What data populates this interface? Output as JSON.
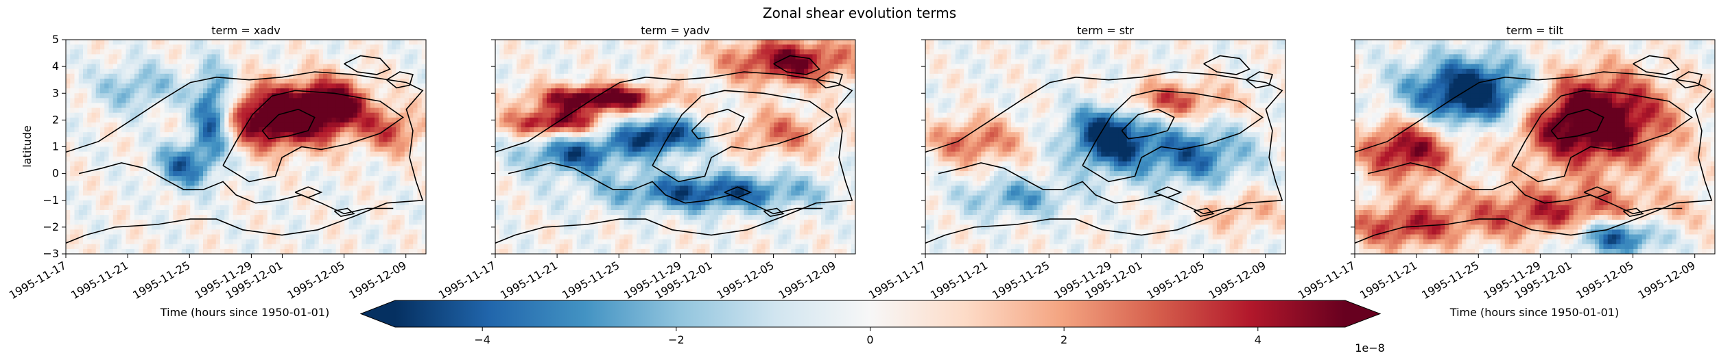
{
  "chart_data": {
    "type": "heatmap",
    "title": "Zonal shear evolution terms",
    "colormap": "RdBu_r",
    "contour_color": "#000000",
    "panels": [
      {
        "title": "term = xadv",
        "pattern": [
          {
            "t": 6.5,
            "y": 2.1,
            "a": 1.8,
            "st": 1.2,
            "sy": 0.8
          },
          {
            "t": 8.2,
            "y": 2.6,
            "a": 1.2,
            "st": 0.8,
            "sy": 0.7
          },
          {
            "t": 4.5,
            "y": 2.2,
            "a": -1.4,
            "st": 0.45,
            "sy": 1.1
          },
          {
            "t": 3.6,
            "y": 0.3,
            "a": -1.0,
            "st": 0.6,
            "sy": 0.6
          },
          {
            "t": 10.0,
            "y": 1.6,
            "a": 0.8,
            "st": 0.7,
            "sy": 0.6
          },
          {
            "t": 2.2,
            "y": 3.2,
            "a": -0.6,
            "st": 0.9,
            "sy": 0.6
          }
        ]
      },
      {
        "title": "term = yadv",
        "pattern": [
          {
            "t": 3.2,
            "y": 2.8,
            "a": 1.6,
            "st": 1.4,
            "sy": 0.35
          },
          {
            "t": 5.0,
            "y": 1.4,
            "a": -1.4,
            "st": 1.0,
            "sy": 0.5
          },
          {
            "t": 6.5,
            "y": -0.7,
            "a": -1.2,
            "st": 2.2,
            "sy": 0.5
          },
          {
            "t": 9.0,
            "y": 4.2,
            "a": 1.3,
            "st": 1.4,
            "sy": 0.6
          },
          {
            "t": 8.6,
            "y": 1.5,
            "a": 0.7,
            "st": 1.1,
            "sy": 0.6
          },
          {
            "t": 1.8,
            "y": 1.9,
            "a": 1.3,
            "st": 1.0,
            "sy": 0.35
          },
          {
            "t": 2.4,
            "y": 0.7,
            "a": -1.1,
            "st": 1.1,
            "sy": 0.5
          }
        ]
      },
      {
        "title": "term = str",
        "pattern": [
          {
            "t": 5.6,
            "y": 1.4,
            "a": -1.5,
            "st": 0.9,
            "sy": 0.9
          },
          {
            "t": 8.2,
            "y": 0.7,
            "a": -1.0,
            "st": 1.2,
            "sy": 0.8
          },
          {
            "t": 7.4,
            "y": 2.7,
            "a": 0.9,
            "st": 1.3,
            "sy": 0.5
          },
          {
            "t": 1.5,
            "y": 1.2,
            "a": 0.8,
            "st": 1.0,
            "sy": 0.6
          },
          {
            "t": 2.8,
            "y": -0.9,
            "a": -0.7,
            "st": 1.2,
            "sy": 0.5
          },
          {
            "t": 9.6,
            "y": -1.4,
            "a": 0.5,
            "st": 0.9,
            "sy": 0.5
          }
        ]
      },
      {
        "title": "term = tilt",
        "pattern": [
          {
            "t": 3.6,
            "y": 3.0,
            "a": -1.7,
            "st": 1.4,
            "sy": 0.9
          },
          {
            "t": 7.2,
            "y": 2.0,
            "a": 1.8,
            "st": 1.6,
            "sy": 1.2
          },
          {
            "t": 1.6,
            "y": 0.9,
            "a": 1.3,
            "st": 1.0,
            "sy": 0.8
          },
          {
            "t": 6.2,
            "y": -1.5,
            "a": 1.0,
            "st": 2.5,
            "sy": 0.7
          },
          {
            "t": 8.0,
            "y": -2.3,
            "a": -1.4,
            "st": 1.0,
            "sy": 0.5
          },
          {
            "t": 1.4,
            "y": -2.0,
            "a": 0.9,
            "st": 1.2,
            "sy": 0.6
          }
        ]
      }
    ],
    "contours": [
      {
        "name": "outer-contour",
        "points": [
          [
            0.0,
            0.8
          ],
          [
            1.0,
            1.2
          ],
          [
            2.0,
            2.0
          ],
          [
            3.0,
            2.8
          ],
          [
            3.8,
            3.4
          ],
          [
            4.6,
            3.6
          ],
          [
            5.6,
            3.5
          ],
          [
            6.6,
            3.6
          ],
          [
            7.6,
            3.8
          ],
          [
            8.8,
            3.7
          ],
          [
            10.4,
            3.4
          ],
          [
            10.9,
            3.1
          ],
          [
            10.4,
            2.4
          ],
          [
            10.6,
            1.6
          ],
          [
            10.5,
            0.6
          ],
          [
            10.7,
            -0.3
          ],
          [
            10.9,
            -1.0
          ],
          [
            9.8,
            -1.1
          ],
          [
            8.8,
            -1.6
          ],
          [
            7.7,
            -2.1
          ],
          [
            6.6,
            -2.3
          ],
          [
            5.4,
            -2.1
          ],
          [
            4.6,
            -1.7
          ],
          [
            3.8,
            -1.7
          ],
          [
            2.8,
            -1.9
          ],
          [
            1.5,
            -2.0
          ],
          [
            0.6,
            -2.3
          ],
          [
            0.0,
            -2.6
          ]
        ]
      },
      {
        "name": "middle-contour",
        "points": [
          [
            4.8,
            0.3
          ],
          [
            5.2,
            1.2
          ],
          [
            5.7,
            2.2
          ],
          [
            6.3,
            2.9
          ],
          [
            7.0,
            3.1
          ],
          [
            8.2,
            3.0
          ],
          [
            9.6,
            2.7
          ],
          [
            10.3,
            2.1
          ],
          [
            9.6,
            1.5
          ],
          [
            8.6,
            1.1
          ],
          [
            7.8,
            0.9
          ],
          [
            7.2,
            1.0
          ],
          [
            6.6,
            0.6
          ],
          [
            6.4,
            -0.1
          ],
          [
            5.6,
            -0.3
          ],
          [
            4.8,
            0.3
          ]
        ]
      },
      {
        "name": "inner-contour",
        "points": [
          [
            6.0,
            1.6
          ],
          [
            6.5,
            2.2
          ],
          [
            7.1,
            2.4
          ],
          [
            7.6,
            2.1
          ],
          [
            7.4,
            1.6
          ],
          [
            6.8,
            1.4
          ],
          [
            6.2,
            1.3
          ],
          [
            6.0,
            1.6
          ]
        ]
      },
      {
        "name": "lower-contour",
        "points": [
          [
            0.4,
            0.0
          ],
          [
            1.1,
            0.2
          ],
          [
            1.7,
            0.4
          ],
          [
            2.4,
            0.2
          ],
          [
            3.0,
            -0.2
          ],
          [
            3.6,
            -0.6
          ],
          [
            4.2,
            -0.6
          ],
          [
            4.8,
            -0.3
          ],
          [
            5.2,
            -0.8
          ],
          [
            5.8,
            -1.1
          ],
          [
            6.5,
            -1.0
          ],
          [
            7.2,
            -0.8
          ],
          [
            7.8,
            -1.1
          ],
          [
            8.5,
            -1.5
          ],
          [
            9.2,
            -1.3
          ],
          [
            10.0,
            -1.3
          ]
        ]
      },
      {
        "name": "upper-blob",
        "points": [
          [
            8.5,
            4.1
          ],
          [
            9.0,
            4.4
          ],
          [
            9.6,
            4.3
          ],
          [
            9.9,
            3.9
          ],
          [
            9.5,
            3.7
          ],
          [
            8.9,
            3.8
          ],
          [
            8.5,
            4.1
          ]
        ]
      },
      {
        "name": "right-blob",
        "points": [
          [
            9.8,
            3.5
          ],
          [
            10.2,
            3.8
          ],
          [
            10.6,
            3.7
          ],
          [
            10.5,
            3.3
          ],
          [
            10.1,
            3.2
          ],
          [
            9.8,
            3.5
          ]
        ]
      },
      {
        "name": "small-blob-a",
        "points": [
          [
            7.0,
            -0.7
          ],
          [
            7.4,
            -0.5
          ],
          [
            7.8,
            -0.7
          ],
          [
            7.4,
            -0.9
          ],
          [
            7.0,
            -0.7
          ]
        ]
      },
      {
        "name": "small-blob-b",
        "points": [
          [
            8.2,
            -1.4
          ],
          [
            8.6,
            -1.3
          ],
          [
            8.8,
            -1.5
          ],
          [
            8.4,
            -1.6
          ],
          [
            8.2,
            -1.4
          ]
        ]
      }
    ],
    "x_ticks": [
      "1995-11-17",
      "1995-11-21",
      "1995-11-25",
      "1995-11-29",
      "1995-12-01",
      "1995-12-05",
      "1995-12-09"
    ],
    "x_tick_days": [
      0,
      4,
      8,
      12,
      14,
      18,
      22
    ],
    "xlim_days": [
      0,
      23.3
    ],
    "y_ticks": [
      "5",
      "4",
      "3",
      "2",
      "1",
      "0",
      "−1",
      "−2",
      "−3"
    ],
    "ylim": [
      -3,
      5
    ],
    "ylabel": "latitude",
    "xlabel": "Time (hours since 1950-01-01)",
    "colorbar": {
      "ticks": [
        "−4",
        "−2",
        "0",
        "2",
        "4"
      ],
      "tick_values": [
        -4,
        -2,
        0,
        2,
        4
      ],
      "range": [
        -4.9,
        4.9
      ],
      "extend": "both",
      "scale_label": "1e−8"
    }
  }
}
